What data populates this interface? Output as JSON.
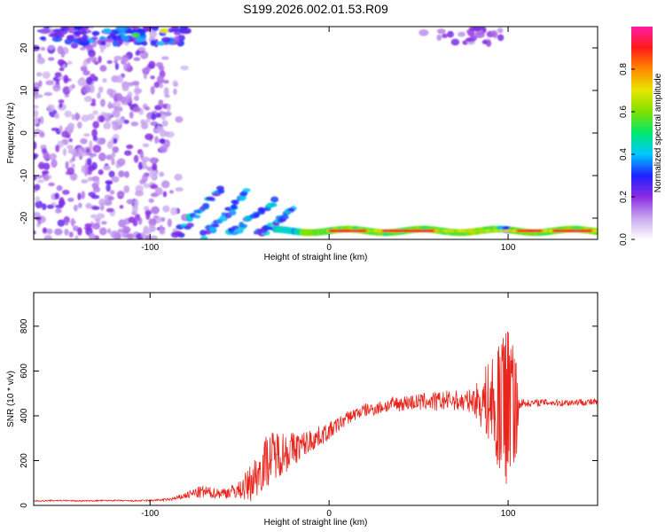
{
  "title": "S199.2026.002.01.53.R09",
  "colors": {
    "snr_line": "#e8241c",
    "background": "#ffffff",
    "axes": "#000000",
    "colormap": [
      "#ffffff",
      "#c9a8ee",
      "#8a2be2",
      "#1e22ff",
      "#00c8ff",
      "#00e86e",
      "#7fe000",
      "#e7e700",
      "#ff8a00",
      "#ff1a1a",
      "#ff1aa8"
    ]
  },
  "chart_data": [
    {
      "type": "heatmap",
      "title": "",
      "xlabel": "Height of straight line (km)",
      "ylabel": "Frequency (Hz)",
      "xlim": [
        -165,
        150
      ],
      "ylim": [
        -25,
        25
      ],
      "xticks": [
        -100,
        0,
        100
      ],
      "yticks": [
        -20,
        -10,
        0,
        10,
        20
      ],
      "colorbar": {
        "label": "Normalized spectral amplitude",
        "range": [
          0,
          1
        ],
        "ticks": [
          "0.0",
          "0.2",
          "0.4",
          "0.6",
          "0.8"
        ],
        "tick_values": [
          0,
          0.2,
          0.4,
          0.6,
          0.8
        ]
      },
      "features": [
        {
          "name": "scatter_noise",
          "x_range": [
            -165,
            -90
          ],
          "y_range": [
            -25,
            25
          ],
          "amplitude": 0.1
        },
        {
          "name": "top_band_left",
          "x_range": [
            -160,
            -80
          ],
          "y_range": [
            21,
            25
          ],
          "amplitude": 0.35
        },
        {
          "name": "top_band_right",
          "x_range": [
            50,
            100
          ],
          "y_range": [
            21,
            25
          ],
          "amplitude": 0.15
        },
        {
          "name": "descending_tracks",
          "x_range": [
            -85,
            -15
          ],
          "y_range": [
            -25,
            -12
          ],
          "amplitude": 0.3
        },
        {
          "name": "low_freq_band",
          "x_range": [
            -30,
            150
          ],
          "y_range": [
            -24.5,
            -21.5
          ],
          "amplitude": 0.85
        }
      ]
    },
    {
      "type": "line",
      "title": "",
      "xlabel": "Height of straight line (km)",
      "ylabel": "SNR (10 * v/v)",
      "xlim": [
        -165,
        150
      ],
      "ylim": [
        0,
        950
      ],
      "xticks": [
        -100,
        0,
        100
      ],
      "yticks": [
        0,
        200,
        400,
        600,
        800
      ],
      "series": [
        {
          "x": [
            -165,
            -150,
            -140,
            -130,
            -120,
            -110,
            -100,
            -90,
            -85,
            -80,
            -75,
            -70,
            -65,
            -60,
            -55,
            -50,
            -45,
            -40,
            -35,
            -30,
            -25,
            -20,
            -15,
            -10,
            -5,
            0,
            5,
            10,
            15,
            20,
            25,
            30,
            35,
            40,
            45,
            50,
            55,
            60,
            65,
            70,
            75,
            80,
            85,
            90,
            93,
            96,
            98,
            100,
            102,
            104,
            106,
            108,
            110,
            120,
            130,
            140,
            150
          ],
          "y": [
            20,
            22,
            20,
            21,
            22,
            20,
            22,
            26,
            32,
            45,
            55,
            60,
            55,
            55,
            60,
            70,
            90,
            140,
            200,
            230,
            240,
            250,
            270,
            290,
            310,
            330,
            360,
            390,
            410,
            425,
            430,
            440,
            450,
            455,
            460,
            460,
            465,
            462,
            468,
            470,
            460,
            470,
            465,
            460,
            455,
            450,
            440,
            430,
            420,
            410,
            455,
            460,
            455,
            460,
            458,
            462,
            460
          ],
          "noise": [
            3,
            3,
            3,
            3,
            3,
            3,
            4,
            6,
            10,
            15,
            25,
            30,
            25,
            25,
            30,
            40,
            80,
            100,
            120,
            110,
            100,
            80,
            60,
            55,
            45,
            40,
            35,
            30,
            30,
            30,
            30,
            30,
            35,
            35,
            35,
            40,
            40,
            45,
            45,
            45,
            50,
            50,
            120,
            200,
            260,
            300,
            320,
            360,
            300,
            300,
            30,
            18,
            16,
            16,
            16,
            16,
            16
          ]
        }
      ]
    }
  ]
}
